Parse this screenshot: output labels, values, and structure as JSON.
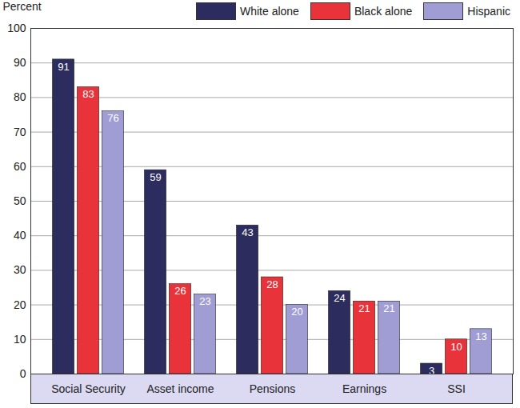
{
  "chart_data": {
    "type": "bar",
    "y_label": "Percent",
    "categories": [
      "Social Security",
      "Asset income",
      "Pensions",
      "Earnings",
      "SSI"
    ],
    "series": [
      {
        "name": "White alone",
        "color": "#2d2c5f",
        "values": [
          91,
          59,
          43,
          24,
          3
        ]
      },
      {
        "name": "Black alone",
        "color": "#e8333a",
        "values": [
          83,
          26,
          28,
          21,
          10
        ]
      },
      {
        "name": "Hispanic",
        "color": "#9f9dd4",
        "values": [
          76,
          23,
          20,
          21,
          13
        ]
      }
    ],
    "ylim": [
      0,
      100
    ],
    "yticks": [
      0,
      10,
      20,
      30,
      40,
      50,
      60,
      70,
      80,
      90,
      100
    ],
    "grid": true,
    "legend": "top-right",
    "data_labels": true
  }
}
